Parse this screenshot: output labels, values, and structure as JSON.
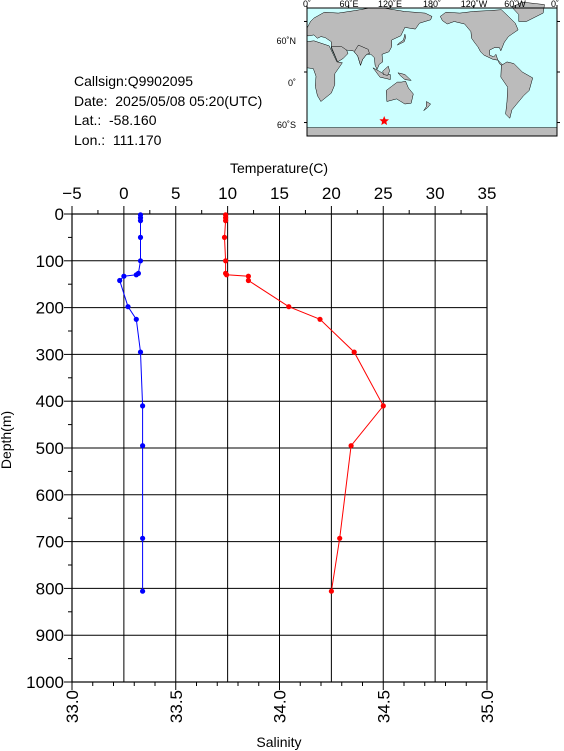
{
  "info": {
    "callsign": "Callsign:Q9902095",
    "date": "Date:  2025/05/08 05:20(UTC)",
    "lat": "Lat.:  -58.160",
    "lon": "Lon.:  111.170"
  },
  "colors": {
    "temperature": "#ff0000",
    "salinity": "#0000ff",
    "ocean": "#ccffff",
    "land": "#bbbbbb",
    "marker": "#ff0000"
  },
  "map": {
    "lon_ticks": [
      "0˚",
      "60˚E",
      "120˚E",
      "180˚",
      "120˚W",
      "60˚W",
      "0˚"
    ],
    "lat_ticks": [
      "60˚N",
      "0˚",
      "60˚S"
    ],
    "marker_icon": "star-icon",
    "marker_lat": -58.16,
    "marker_lon": 111.17
  },
  "chart_data": {
    "type": "line",
    "title": "",
    "y_label": "Depth(m)",
    "y_range": [
      0,
      1000
    ],
    "y_ticks": [
      "0",
      "100",
      "200",
      "300",
      "400",
      "500",
      "600",
      "700",
      "800",
      "900",
      "1000"
    ],
    "grid": true,
    "top_axis": {
      "label": "Temperature(C)",
      "range": [
        -5,
        35
      ],
      "ticks": [
        "−5",
        "0",
        "5",
        "10",
        "15",
        "20",
        "25",
        "30",
        "35"
      ]
    },
    "bottom_axis": {
      "label": "Salinity",
      "range": [
        33.0,
        35.0
      ],
      "ticks": [
        "33.0",
        "33.5",
        "34.0",
        "34.5",
        "35.0"
      ]
    },
    "series": [
      {
        "axis": "top",
        "color": "#ff0000",
        "points": [
          [
            9.8,
            2
          ],
          [
            9.8,
            8
          ],
          [
            9.8,
            14
          ],
          [
            9.7,
            50
          ],
          [
            9.8,
            100
          ],
          [
            9.8,
            127
          ],
          [
            9.9,
            130
          ],
          [
            12.0,
            133
          ],
          [
            12.0,
            142
          ],
          [
            15.9,
            198
          ],
          [
            18.9,
            225
          ],
          [
            22.2,
            295
          ],
          [
            25.0,
            410
          ],
          [
            21.9,
            495
          ],
          [
            20.8,
            693
          ],
          [
            20.0,
            806
          ]
        ]
      },
      {
        "axis": "bottom",
        "color": "#0000ff",
        "points": [
          [
            33.33,
            2
          ],
          [
            33.33,
            8
          ],
          [
            33.33,
            14
          ],
          [
            33.33,
            50
          ],
          [
            33.33,
            100
          ],
          [
            33.32,
            127
          ],
          [
            33.31,
            130
          ],
          [
            33.25,
            133
          ],
          [
            33.23,
            142
          ],
          [
            33.27,
            198
          ],
          [
            33.31,
            225
          ],
          [
            33.33,
            295
          ],
          [
            33.34,
            410
          ],
          [
            33.34,
            495
          ],
          [
            33.34,
            693
          ],
          [
            33.34,
            806
          ]
        ]
      }
    ]
  }
}
